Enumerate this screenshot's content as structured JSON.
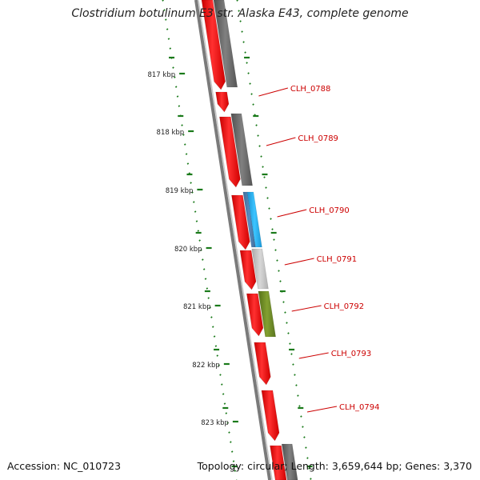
{
  "title": "Clostridium botulinum E3 str. Alaska E43, complete genome",
  "accession": "Accession: NC_010723",
  "summary": "Topology: circular; Length: 3,659,644 bp; Genes: 3,370",
  "ticks": [
    "817 kbp",
    "818 kbp",
    "819 kbp",
    "820 kbp",
    "821 kbp",
    "822 kbp",
    "823 kbp"
  ],
  "gene_labels": [
    "CLH_0788",
    "CLH_0789",
    "CLH_0790",
    "CLH_0791",
    "CLH_0792",
    "CLH_0793",
    "CLH_0794"
  ],
  "colors": {
    "forward_cds": "#ff1a1a",
    "reverse_cds": "#6b6b6b",
    "backbone": "#7a7a7a",
    "tick": "#1a7a1a",
    "label": "#cc0000",
    "leader": "#cc0000",
    "cog_blue": "#2ab0e8",
    "cog_gray": "#c8c8c8",
    "cog_olive": "#6f8c22"
  }
}
